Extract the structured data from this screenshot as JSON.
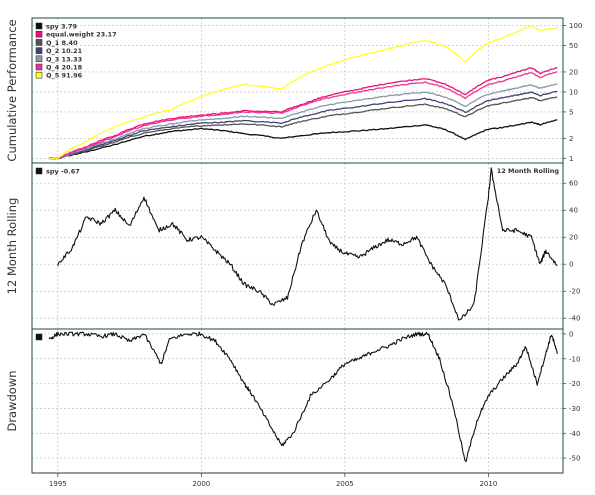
{
  "chart_data": [
    {
      "type": "line",
      "ylabel": "Cumulative Performance",
      "scale": "log",
      "ylim": [
        0.85,
        130
      ],
      "y_ticks": [
        1,
        2,
        5,
        10,
        20,
        50,
        100
      ],
      "grid": true,
      "legend_position": "top-left",
      "x_range": [
        1994.1,
        2012.6
      ],
      "series": [
        {
          "name": "spy",
          "label": "spy 3.79",
          "color": "#111111",
          "x": [
            1994.7,
            1995.0,
            1996.0,
            1997.0,
            1998.0,
            1999.0,
            2000.0,
            2000.8,
            2001.5,
            2002.8,
            2003.5,
            2004.5,
            2005.5,
            2006.5,
            2007.8,
            2008.5,
            2009.2,
            2010.0,
            2010.5,
            2011.0,
            2011.5,
            2011.8,
            2012.4
          ],
          "values": [
            1.0,
            1.0,
            1.25,
            1.6,
            2.15,
            2.55,
            2.8,
            2.6,
            2.35,
            2.0,
            2.2,
            2.45,
            2.6,
            2.8,
            3.2,
            2.7,
            1.9,
            2.75,
            2.9,
            3.2,
            3.5,
            3.2,
            3.79
          ]
        },
        {
          "name": "equal.weight",
          "label": "equal.weight 23.17",
          "color": "#ee1177",
          "x": [
            1994.7,
            1995.0,
            1996.0,
            1997.0,
            1998.0,
            1999.0,
            2000.0,
            2000.8,
            2001.5,
            2002.8,
            2003.5,
            2004.5,
            2005.5,
            2006.5,
            2007.8,
            2008.5,
            2009.2,
            2010.0,
            2010.5,
            2011.0,
            2011.5,
            2011.8,
            2012.4
          ],
          "values": [
            1.0,
            1.0,
            1.5,
            2.2,
            3.3,
            4.0,
            4.5,
            4.8,
            5.2,
            5.0,
            6.5,
            9.0,
            11.0,
            13.5,
            16.0,
            13.0,
            9.0,
            15.0,
            17.0,
            20.0,
            23.0,
            19.0,
            23.17
          ]
        },
        {
          "name": "Q_1",
          "label": "Q_1 8.40",
          "color": "#555555",
          "x": [
            1994.7,
            1995.0,
            1996.0,
            1997.0,
            1998.0,
            1999.0,
            2000.0,
            2000.8,
            2001.5,
            2002.8,
            2003.5,
            2004.5,
            2005.5,
            2006.5,
            2007.8,
            2008.5,
            2009.2,
            2010.0,
            2010.5,
            2011.0,
            2011.5,
            2011.8,
            2012.4
          ],
          "values": [
            1.0,
            1.0,
            1.3,
            1.75,
            2.4,
            2.8,
            3.1,
            3.2,
            3.3,
            3.0,
            3.6,
            4.4,
            5.0,
            5.7,
            6.5,
            5.6,
            4.2,
            6.2,
            6.8,
            7.5,
            8.2,
            7.4,
            8.4
          ]
        },
        {
          "name": "Q_2",
          "label": "Q_2 10.21",
          "color": "#444477",
          "x": [
            1994.7,
            1995.0,
            1996.0,
            1997.0,
            1998.0,
            1999.0,
            2000.0,
            2000.8,
            2001.5,
            2002.8,
            2003.5,
            2004.5,
            2005.5,
            2006.5,
            2007.8,
            2008.5,
            2009.2,
            2010.0,
            2010.5,
            2011.0,
            2011.5,
            2011.8,
            2012.4
          ],
          "values": [
            1.0,
            1.0,
            1.35,
            1.85,
            2.6,
            3.0,
            3.4,
            3.5,
            3.7,
            3.4,
            4.2,
            5.3,
            6.0,
            6.9,
            7.9,
            6.7,
            4.9,
            7.4,
            8.2,
            9.0,
            9.9,
            8.8,
            10.21
          ]
        },
        {
          "name": "Q_3",
          "label": "Q_3 13.33",
          "color": "#8899aa",
          "x": [
            1994.7,
            1995.0,
            1996.0,
            1997.0,
            1998.0,
            1999.0,
            2000.0,
            2000.8,
            2001.5,
            2002.8,
            2003.5,
            2004.5,
            2005.5,
            2006.5,
            2007.8,
            2008.5,
            2009.2,
            2010.0,
            2010.5,
            2011.0,
            2011.5,
            2011.8,
            2012.4
          ],
          "values": [
            1.0,
            1.0,
            1.4,
            1.95,
            2.8,
            3.3,
            3.8,
            4.0,
            4.3,
            4.0,
            5.0,
            6.5,
            7.5,
            8.7,
            10.0,
            8.3,
            6.0,
            9.3,
            10.3,
            11.5,
            12.8,
            11.3,
            13.33
          ]
        },
        {
          "name": "Q_4",
          "label": "Q_4 20.18",
          "color": "#ee3399",
          "x": [
            1994.7,
            1995.0,
            1996.0,
            1997.0,
            1998.0,
            1999.0,
            2000.0,
            2000.8,
            2001.5,
            2002.8,
            2003.5,
            2004.5,
            2005.5,
            2006.5,
            2007.8,
            2008.5,
            2009.2,
            2010.0,
            2010.5,
            2011.0,
            2011.5,
            2011.8,
            2012.4
          ],
          "values": [
            1.0,
            1.0,
            1.45,
            2.1,
            3.1,
            3.8,
            4.3,
            4.6,
            5.0,
            4.8,
            6.2,
            8.3,
            10.0,
            12.0,
            14.0,
            11.5,
            8.0,
            13.0,
            14.5,
            17.0,
            19.5,
            16.5,
            20.18
          ]
        },
        {
          "name": "Q_5",
          "label": "Q_5 91.96",
          "color": "#ffff22",
          "x": [
            1994.7,
            1995.0,
            1996.0,
            1997.0,
            1998.0,
            1999.0,
            2000.0,
            2000.8,
            2001.5,
            2002.8,
            2003.5,
            2004.5,
            2005.5,
            2006.5,
            2007.8,
            2008.5,
            2009.2,
            2010.0,
            2010.5,
            2011.0,
            2011.5,
            2011.8,
            2012.4
          ],
          "values": [
            1.0,
            1.0,
            1.8,
            3.0,
            4.2,
            5.5,
            8.5,
            11.0,
            13.0,
            11.0,
            17.0,
            26.0,
            35.0,
            44.0,
            60.0,
            48.0,
            28.0,
            55.0,
            65.0,
            80.0,
            100.0,
            85.0,
            91.96
          ]
        }
      ]
    },
    {
      "type": "line",
      "ylabel": "12 Month Rolling",
      "title": "12 Month Rolling",
      "ylim": [
        -48,
        75
      ],
      "y_ticks": [
        -40,
        -20,
        0,
        20,
        40,
        60
      ],
      "grid": true,
      "legend_position": "top-left",
      "series": [
        {
          "name": "spy",
          "label": "spy -0.67",
          "color": "#111111",
          "x": [
            1995.0,
            1995.5,
            1996.0,
            1996.5,
            1997.0,
            1997.5,
            1998.0,
            1998.5,
            1999.0,
            1999.5,
            2000.0,
            2000.5,
            2001.0,
            2001.5,
            2002.0,
            2002.5,
            2003.0,
            2003.5,
            2004.0,
            2004.5,
            2005.0,
            2005.5,
            2006.0,
            2006.5,
            2007.0,
            2007.5,
            2008.0,
            2008.5,
            2009.0,
            2009.5,
            2010.0,
            2010.1,
            2010.5,
            2011.0,
            2011.5,
            2011.8,
            2012.0,
            2012.4
          ],
          "values": [
            0,
            12,
            35,
            30,
            40,
            28,
            50,
            25,
            30,
            18,
            20,
            10,
            0,
            -15,
            -20,
            -30,
            -25,
            15,
            40,
            15,
            8,
            5,
            12,
            18,
            15,
            20,
            0,
            -15,
            -42,
            -30,
            50,
            70,
            25,
            25,
            20,
            0,
            10,
            -1
          ]
        }
      ]
    },
    {
      "type": "line",
      "ylabel": "Drawdown",
      "ylim": [
        -56,
        2
      ],
      "y_ticks": [
        -50,
        -40,
        -30,
        -20,
        -10,
        0
      ],
      "grid": true,
      "legend_position": "top-left",
      "series": [
        {
          "name": "spy",
          "label": "",
          "color": "#111111",
          "x": [
            1994.7,
            1995.0,
            1995.5,
            1996.0,
            1996.5,
            1997.0,
            1997.5,
            1998.0,
            1998.6,
            1998.9,
            1999.5,
            2000.0,
            2000.5,
            2001.0,
            2001.5,
            2001.8,
            2002.3,
            2002.8,
            2003.2,
            2003.8,
            2004.5,
            2005.0,
            2005.5,
            2006.0,
            2006.5,
            2007.0,
            2007.5,
            2007.9,
            2008.3,
            2008.8,
            2009.2,
            2009.6,
            2010.0,
            2010.5,
            2011.0,
            2011.3,
            2011.7,
            2012.0,
            2012.2,
            2012.4
          ],
          "values": [
            -2,
            0,
            0,
            0,
            -1,
            0,
            -3,
            0,
            -12,
            -2,
            0,
            0,
            -3,
            -10,
            -20,
            -25,
            -35,
            -45,
            -40,
            -25,
            -18,
            -12,
            -10,
            -7,
            -5,
            -2,
            0,
            0,
            -10,
            -30,
            -52,
            -35,
            -25,
            -18,
            -12,
            -5,
            -20,
            -8,
            0,
            -8
          ]
        }
      ]
    }
  ],
  "x_axis": {
    "ticks": [
      1995,
      2000,
      2005,
      2010
    ]
  }
}
